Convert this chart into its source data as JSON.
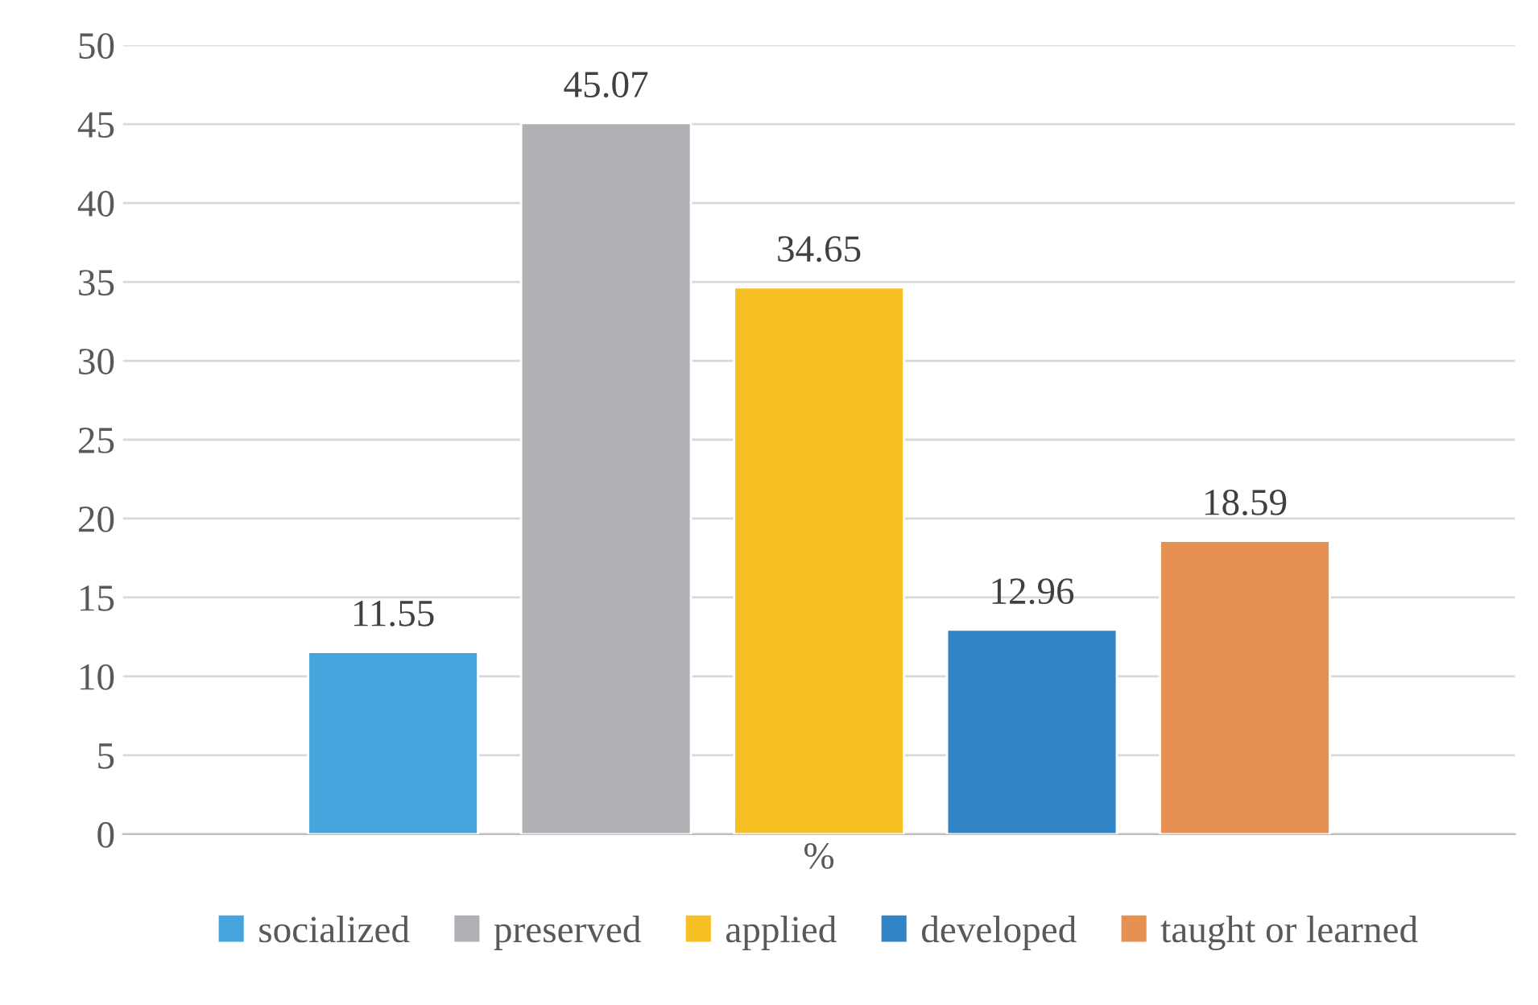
{
  "chart_data": {
    "type": "bar",
    "categories": [
      "%"
    ],
    "series": [
      {
        "name": "socialized",
        "color": "#45a5dc",
        "values": [
          11.55
        ]
      },
      {
        "name": "preserved",
        "color": "#b0b1b5",
        "values": [
          45.07
        ]
      },
      {
        "name": "applied",
        "color": "#f6c024",
        "values": [
          34.65
        ]
      },
      {
        "name": "developed",
        "color": "#3185c6",
        "values": [
          12.96
        ]
      },
      {
        "name": "taught or learned",
        "color": "#e69152",
        "values": [
          18.59
        ]
      }
    ],
    "ylim": [
      0,
      50
    ],
    "yticks": [
      0,
      5,
      10,
      15,
      20,
      25,
      30,
      35,
      40,
      45,
      50
    ],
    "grid": "y",
    "legend": "bottom",
    "data_labels": true
  }
}
